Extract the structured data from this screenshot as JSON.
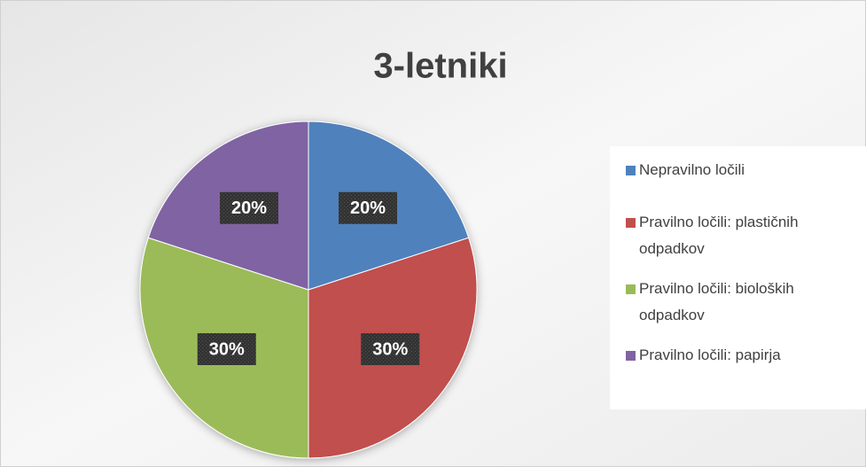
{
  "chart_data": {
    "type": "pie",
    "title": "3-letniki",
    "categories": [
      "Nepravilno ločili",
      "Pravilno ločili: plastičnih odpadkov",
      "Pravilno ločili: bioloških odpadkov",
      "Pravilno ločili: papirja"
    ],
    "values": [
      20,
      30,
      30,
      20
    ],
    "value_labels": [
      "20%",
      "30%",
      "30%",
      "20%"
    ],
    "colors": [
      "#4f81bd",
      "#c0504d",
      "#9bbb59",
      "#8064a2"
    ],
    "legend": "right"
  }
}
